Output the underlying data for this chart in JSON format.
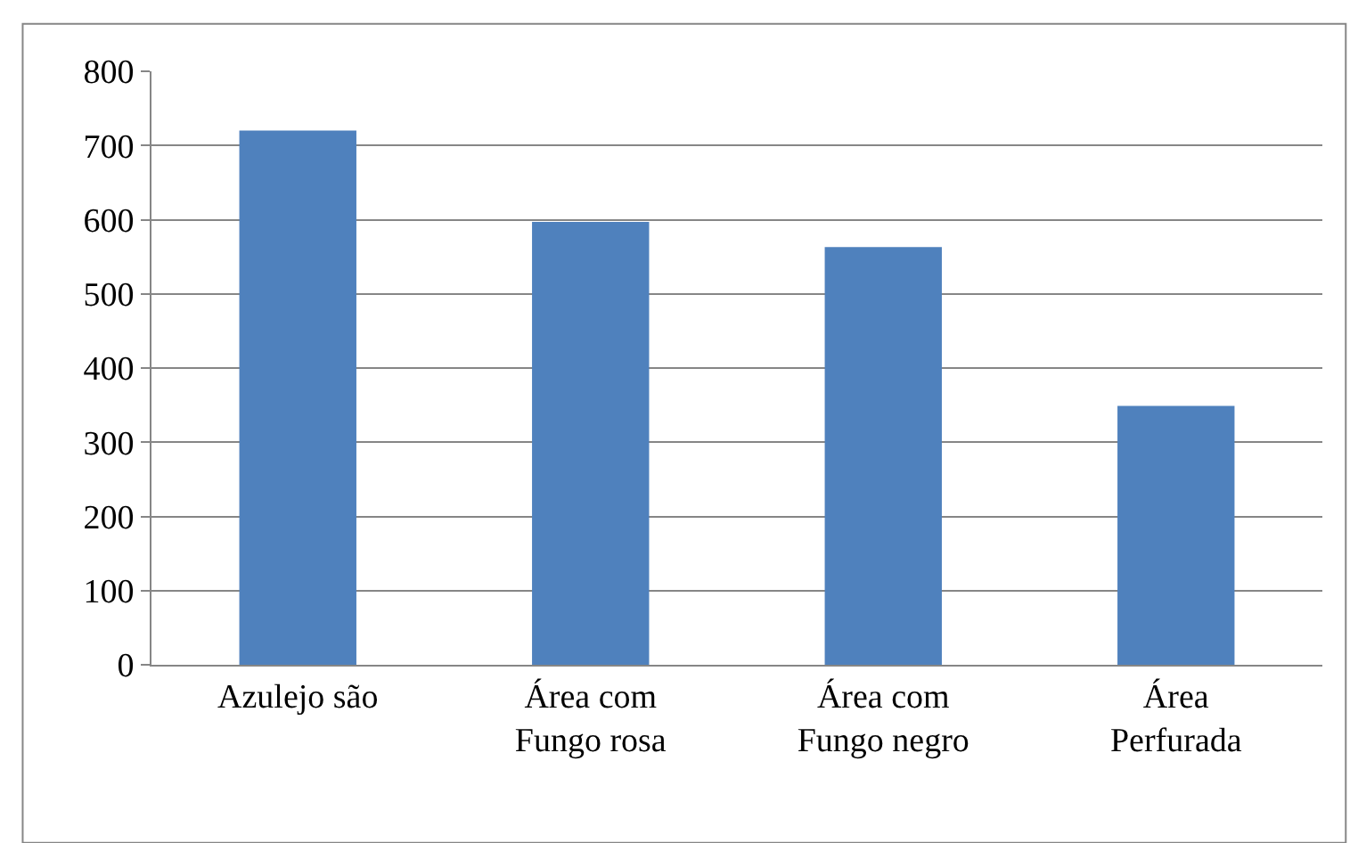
{
  "chart_data": {
    "type": "bar",
    "categories": [
      "Azulejo são",
      "Área com\nFungo rosa",
      "Área com\nFungo negro",
      "Área\nPerfurada"
    ],
    "values": [
      720,
      597,
      563,
      349
    ],
    "color": "#4f81bd",
    "ylim": [
      0,
      800
    ],
    "yticks": [
      0,
      100,
      200,
      300,
      400,
      500,
      600,
      700,
      800
    ],
    "grid": "y",
    "legend": false
  }
}
